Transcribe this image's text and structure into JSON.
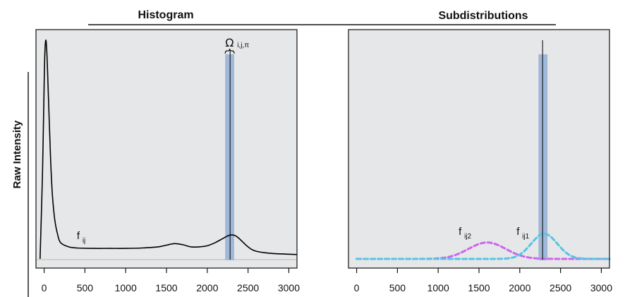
{
  "chart_data": [
    {
      "type": "line",
      "title": "Histogram",
      "ylabel": "Raw Intensity",
      "xlim": [
        -100,
        3100
      ],
      "xticks": [
        0,
        500,
        1000,
        1500,
        2000,
        2500,
        3000
      ],
      "tick_labels": [
        "0",
        "500",
        "1000",
        "1500",
        "2000",
        "2500",
        "3000"
      ],
      "colors": {
        "background": "#e6e7e8",
        "curve": "#000000",
        "band": "#9bb5d8"
      },
      "series": [
        {
          "x": [
            -50,
            -20,
            0,
            10,
            20,
            30,
            40,
            60,
            80,
            100,
            130,
            160,
            200,
            300,
            400,
            600,
            800,
            1000,
            1200,
            1400,
            1500,
            1600,
            1700,
            1800,
            1900,
            2000,
            2100,
            2200,
            2250,
            2300,
            2350,
            2400,
            2500,
            2600,
            2800,
            3100
          ],
          "y": [
            0.0,
            0.4,
            0.8,
            0.95,
            1.0,
            0.97,
            0.88,
            0.66,
            0.45,
            0.3,
            0.18,
            0.12,
            0.075,
            0.055,
            0.05,
            0.048,
            0.048,
            0.048,
            0.05,
            0.055,
            0.063,
            0.07,
            0.065,
            0.055,
            0.055,
            0.06,
            0.075,
            0.095,
            0.105,
            0.11,
            0.105,
            0.09,
            0.055,
            0.035,
            0.025,
            0.02
          ]
        }
      ],
      "annotations": [
        {
          "main": "f",
          "sub": "ij",
          "x": 400
        },
        {
          "main": "Ω",
          "sub": "i,j,π",
          "x": 2280
        }
      ],
      "highlight_band": {
        "x_from": 2220,
        "x_to": 2330,
        "line_x": 2280
      }
    },
    {
      "type": "line",
      "title": "Subdistributions",
      "xlim": [
        -100,
        3100
      ],
      "xticks": [
        0,
        500,
        1000,
        1500,
        2000,
        2500,
        3000
      ],
      "tick_labels": [
        "0",
        "500",
        "1000",
        "1500",
        "2000",
        "2500",
        "3000"
      ],
      "colors": {
        "background": "#e6e7e8",
        "band": "#9bb5d8"
      },
      "series": [
        {
          "label": "f ij2",
          "style": "dashed",
          "color": "#cc66ee",
          "gaussian": {
            "mean": 1600,
            "sd": 230,
            "peak": 0.075
          }
        },
        {
          "label": "f ij1",
          "style": "dashed",
          "color": "#55c5e5",
          "gaussian": {
            "mean": 2300,
            "sd": 160,
            "peak": 0.115
          }
        }
      ],
      "annotations": [
        {
          "main": "f",
          "sub": "ij2",
          "x": 1250
        },
        {
          "main": "f",
          "sub": "ij1",
          "x": 1960
        }
      ],
      "highlight_band": {
        "x_from": 2230,
        "x_to": 2340,
        "line_x": 2280
      }
    }
  ]
}
